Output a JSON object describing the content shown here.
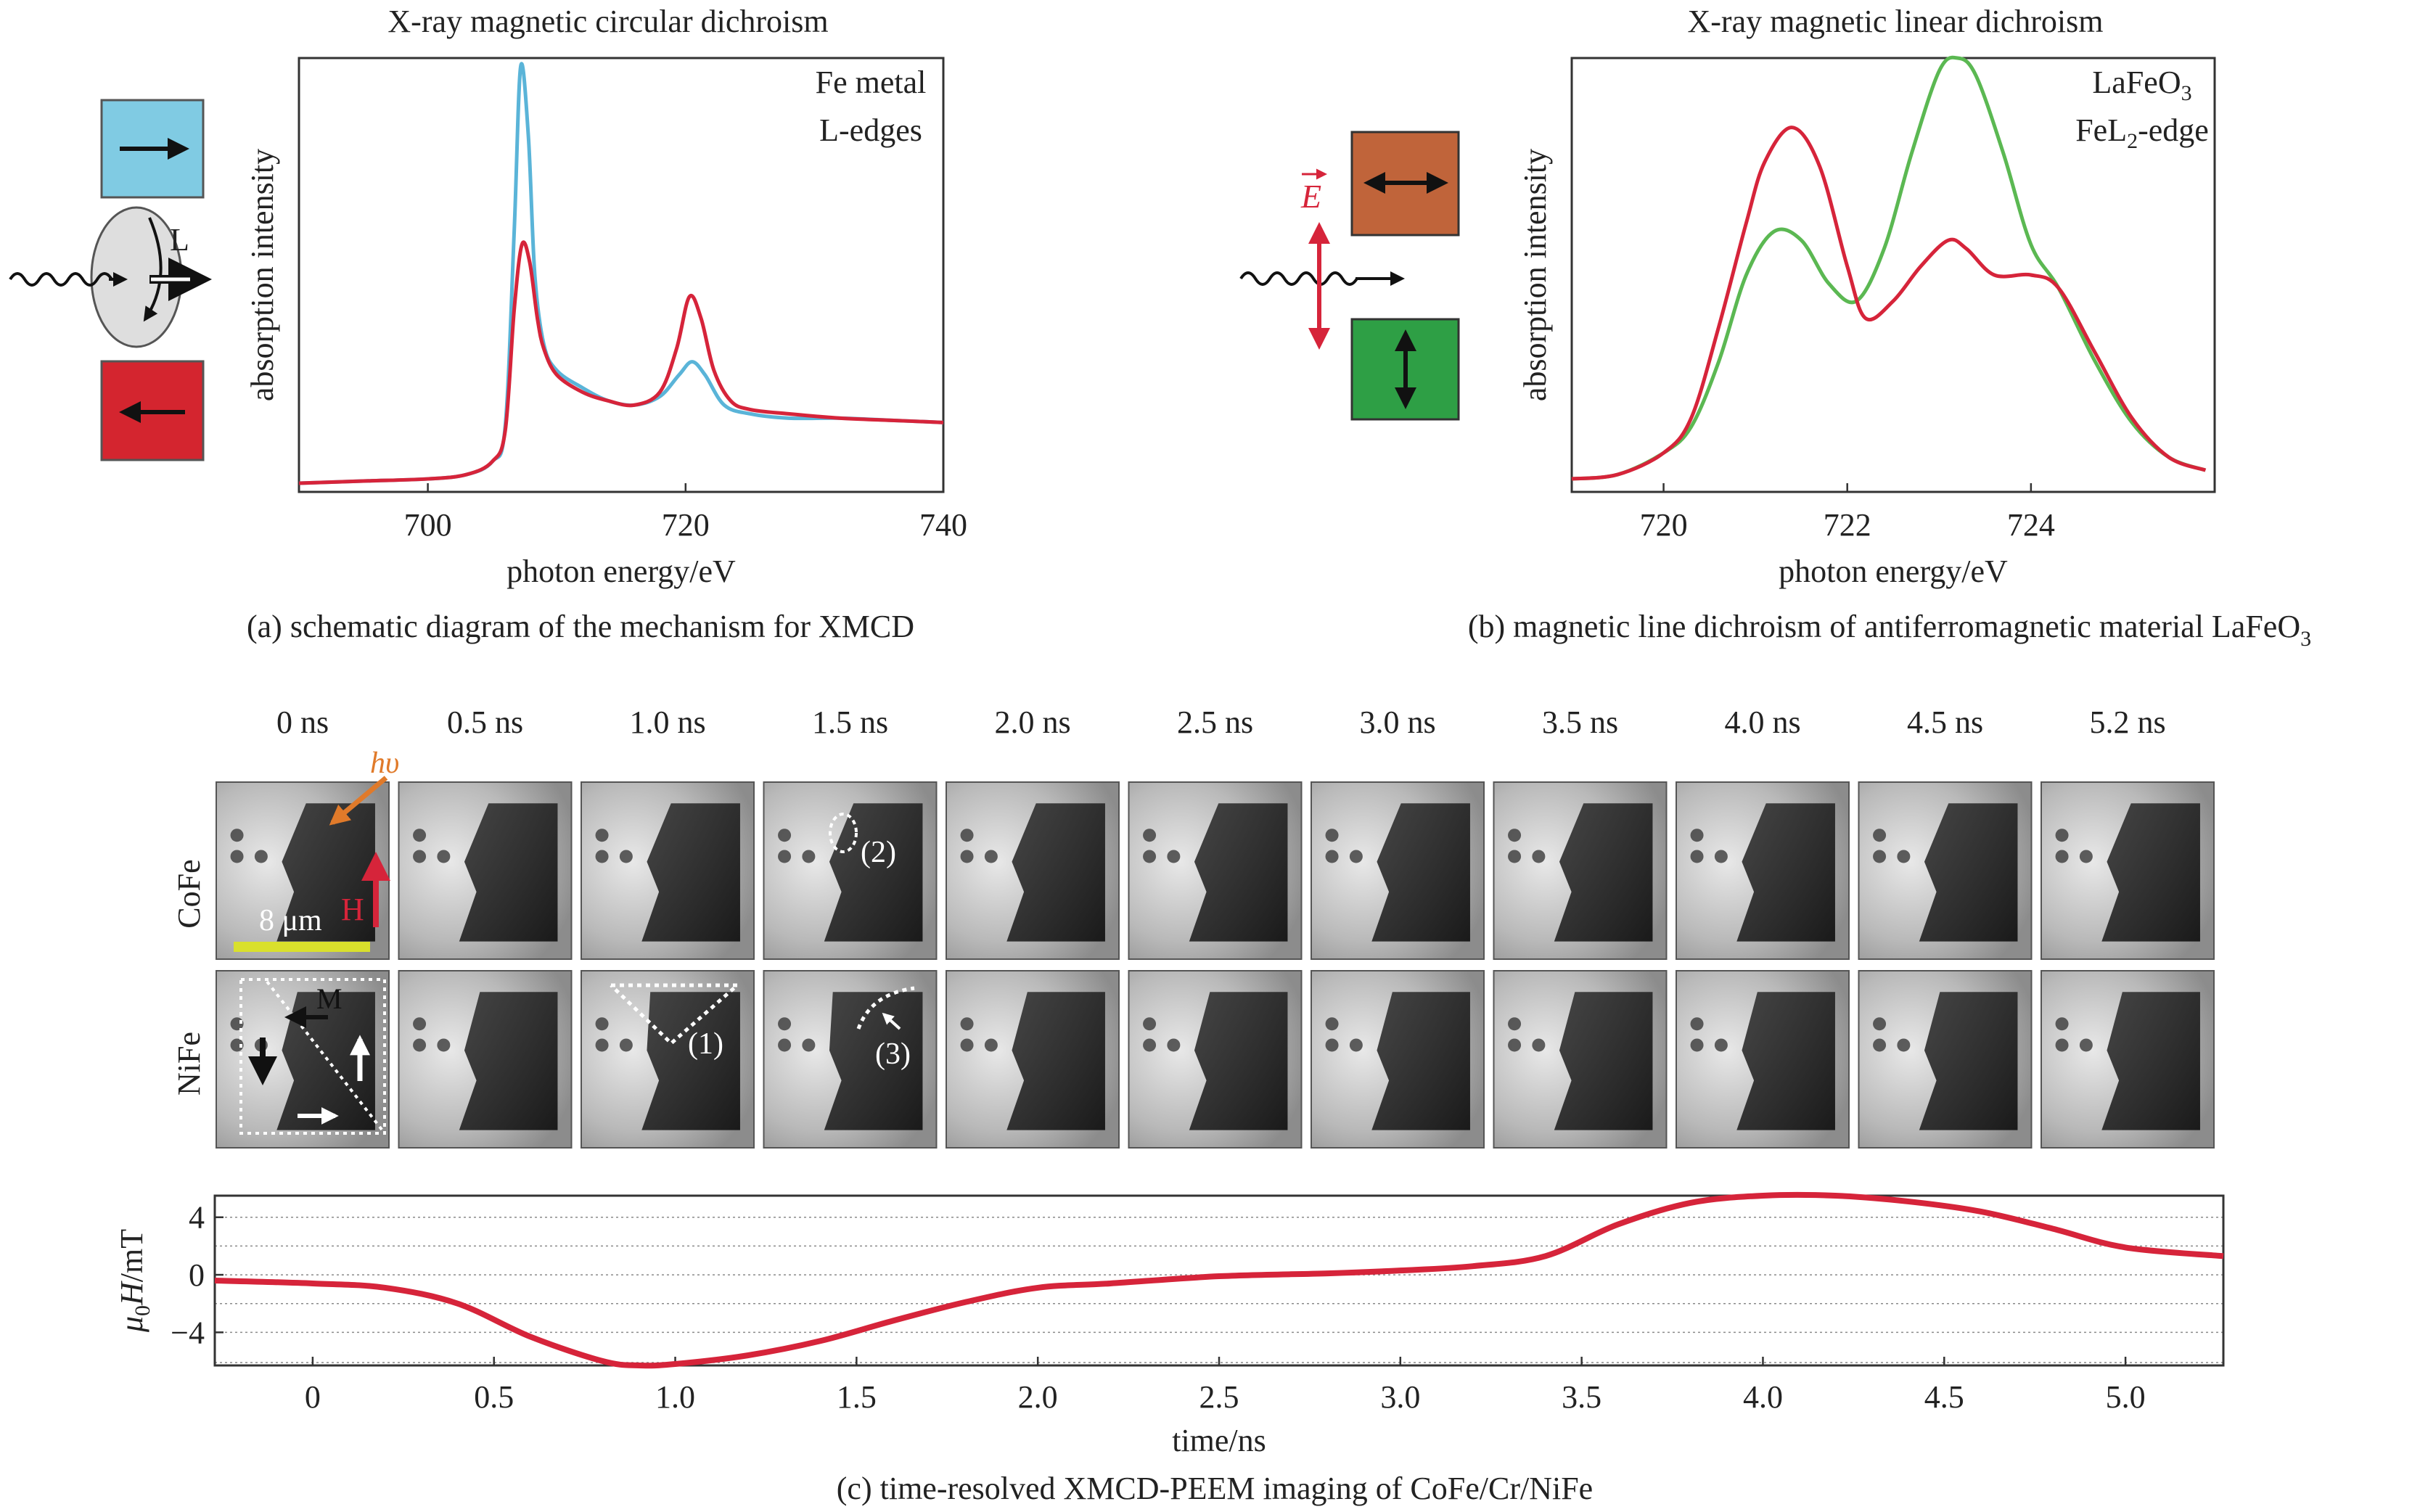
{
  "panel_a": {
    "title": "X-ray magnetic circular dichroism",
    "caption": "(a) schematic diagram of the mechanism for XMCD",
    "label_L": "L",
    "colors": {
      "blue_box": "#80cbe3",
      "red_box": "#d4252f",
      "disc": "#dedede"
    }
  },
  "panel_b": {
    "title": "X-ray magnetic linear dichroism",
    "caption_main": "(b) magnetic line dichroism of antiferromagnetic material LaFeO",
    "caption_sub": "3",
    "label_E": "E",
    "colors": {
      "orange_box": "#c0643a",
      "green_box": "#2e9f45",
      "arrow": "#d6243a"
    }
  },
  "panel_c": {
    "caption": "(c) time-resolved XMCD-PEEM imaging of CoFe/Cr/NiFe",
    "times": [
      "0 ns",
      "0.5 ns",
      "1.0 ns",
      "1.5 ns",
      "2.0 ns",
      "2.5 ns",
      "3.0 ns",
      "3.5 ns",
      "4.0 ns",
      "4.5 ns",
      "5.2 ns"
    ],
    "rows": [
      "CoFe",
      "NiFe"
    ],
    "annotations": {
      "hv": "hυ",
      "H": "H",
      "scale": "8 μm",
      "M": "M",
      "mark1": "(1)",
      "mark2": "(2)",
      "mark3": "(3)"
    },
    "colors": {
      "scale_bar": "#d9e02c",
      "hv_arrow": "#e07a2a",
      "H_arrow": "#d6243a"
    }
  },
  "chart_data": [
    {
      "type": "line",
      "panel": "a",
      "xlabel": "photon energy/eV",
      "ylabel": "absorption intensity",
      "xlim": [
        690,
        740
      ],
      "ylim": [
        0,
        1
      ],
      "xticks": [
        700,
        720,
        740
      ],
      "annotation": [
        "Fe metal",
        "L-edges"
      ],
      "series": [
        {
          "color": "#5ab4d8",
          "x": [
            690,
            695,
            700,
            703,
            705,
            706,
            706.7,
            707.2,
            707.8,
            708.3,
            709,
            710,
            712,
            714,
            716,
            718,
            719.5,
            720.5,
            721.5,
            723,
            725,
            728,
            732,
            736,
            740
          ],
          "y": [
            0.02,
            0.025,
            0.03,
            0.04,
            0.07,
            0.15,
            0.6,
            0.98,
            0.82,
            0.5,
            0.34,
            0.28,
            0.24,
            0.21,
            0.2,
            0.22,
            0.27,
            0.3,
            0.27,
            0.2,
            0.18,
            0.17,
            0.17,
            0.165,
            0.16
          ]
        },
        {
          "color": "#d6243a",
          "x": [
            690,
            695,
            700,
            703,
            705,
            706,
            706.7,
            707.3,
            707.9,
            708.5,
            709,
            710,
            712,
            714,
            716,
            718,
            719.3,
            720.3,
            721.2,
            722.2,
            723.5,
            725,
            728,
            732,
            736,
            740
          ],
          "y": [
            0.02,
            0.025,
            0.03,
            0.04,
            0.07,
            0.14,
            0.42,
            0.57,
            0.53,
            0.4,
            0.33,
            0.27,
            0.23,
            0.21,
            0.2,
            0.23,
            0.33,
            0.45,
            0.4,
            0.28,
            0.21,
            0.19,
            0.18,
            0.17,
            0.165,
            0.16
          ]
        }
      ]
    },
    {
      "type": "line",
      "panel": "b",
      "xlabel": "photon energy/eV",
      "ylabel": "absorption intensity",
      "xlim": [
        719,
        726
      ],
      "ylim": [
        0,
        1
      ],
      "xticks": [
        720,
        722,
        724
      ],
      "annotation": [
        "LaFeO3",
        "FeL2-edge"
      ],
      "series": [
        {
          "color": "#5bb852",
          "x": [
            719,
            719.5,
            720,
            720.3,
            720.6,
            720.9,
            721.2,
            721.5,
            721.8,
            722.1,
            722.4,
            722.7,
            723,
            723.2,
            723.4,
            723.7,
            724,
            724.3,
            724.7,
            725.1,
            725.5,
            725.9
          ],
          "y": [
            0.03,
            0.04,
            0.09,
            0.15,
            0.3,
            0.5,
            0.6,
            0.58,
            0.48,
            0.44,
            0.56,
            0.78,
            0.97,
            1.0,
            0.96,
            0.78,
            0.57,
            0.47,
            0.3,
            0.16,
            0.08,
            0.05
          ]
        },
        {
          "color": "#d6243a",
          "x": [
            719,
            719.5,
            720,
            720.3,
            720.6,
            720.9,
            721.1,
            721.4,
            721.7,
            722,
            722.2,
            722.5,
            722.8,
            723.1,
            723.3,
            723.6,
            724,
            724.3,
            724.7,
            725.1,
            725.5,
            725.9
          ],
          "y": [
            0.03,
            0.04,
            0.09,
            0.17,
            0.38,
            0.62,
            0.76,
            0.84,
            0.75,
            0.52,
            0.4,
            0.44,
            0.52,
            0.58,
            0.56,
            0.5,
            0.5,
            0.47,
            0.32,
            0.17,
            0.08,
            0.05
          ]
        }
      ]
    },
    {
      "type": "line",
      "panel": "c",
      "xlabel": "time/ns",
      "ylabel": "μ0H/mT",
      "xlim": [
        -0.27,
        5.27
      ],
      "ylim": [
        -6.3,
        5.5
      ],
      "xticks": [
        0,
        0.5,
        1.0,
        1.5,
        2.0,
        2.5,
        3.0,
        3.5,
        4.0,
        4.5,
        5.0
      ],
      "xtick_labels": [
        "0",
        "0.5",
        "1.0",
        "1.5",
        "2.0",
        "2.5",
        "3.0",
        "3.5",
        "4.0",
        "4.5",
        "5.0"
      ],
      "yticks": [
        4,
        0,
        -4
      ],
      "ytick_labels": [
        "4",
        "0",
        "−4"
      ],
      "grid": true,
      "series": [
        {
          "color": "#d6243a",
          "x": [
            -0.27,
            0,
            0.2,
            0.4,
            0.6,
            0.8,
            0.9,
            1.0,
            1.2,
            1.4,
            1.6,
            1.8,
            2.0,
            2.2,
            2.5,
            2.8,
            3.0,
            3.2,
            3.4,
            3.6,
            3.8,
            4.0,
            4.2,
            4.4,
            4.6,
            4.8,
            5.0,
            5.27
          ],
          "y": [
            -0.4,
            -0.6,
            -0.9,
            -2.0,
            -4.3,
            -6.0,
            -6.3,
            -6.2,
            -5.6,
            -4.6,
            -3.2,
            -1.9,
            -0.9,
            -0.6,
            -0.1,
            0.1,
            0.3,
            0.6,
            1.3,
            3.5,
            5.0,
            5.5,
            5.5,
            5.1,
            4.4,
            3.2,
            1.9,
            1.3
          ]
        }
      ]
    }
  ]
}
